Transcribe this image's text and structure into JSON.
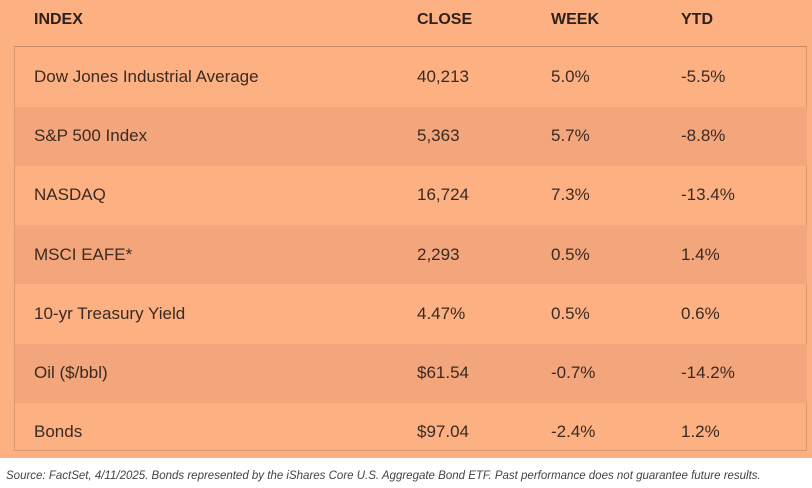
{
  "table": {
    "columns": [
      "INDEX",
      "CLOSE",
      "WEEK",
      "YTD"
    ],
    "rows": [
      [
        "Dow Jones Industrial Average",
        "40,213",
        "5.0%",
        "-5.5%"
      ],
      [
        "S&P 500 Index",
        "5,363",
        "5.7%",
        "-8.8%"
      ],
      [
        "NASDAQ",
        "16,724",
        "7.3%",
        "-13.4%"
      ],
      [
        "MSCI EAFE*",
        "2,293",
        "0.5%",
        "1.4%"
      ],
      [
        "10-yr Treasury Yield",
        "4.47%",
        "0.5%",
        "0.6%"
      ],
      [
        "Oil ($/bbl)",
        "$61.54",
        "-0.7%",
        "-14.2%"
      ],
      [
        "Bonds",
        "$97.04",
        "-2.4%",
        "1.2%"
      ]
    ]
  },
  "footer": {
    "source": "Source: FactSet, 4/11/2025. Bonds represented by the iShares Core U.S. Aggregate Bond ETF. Past performance does not guarantee future results."
  }
}
